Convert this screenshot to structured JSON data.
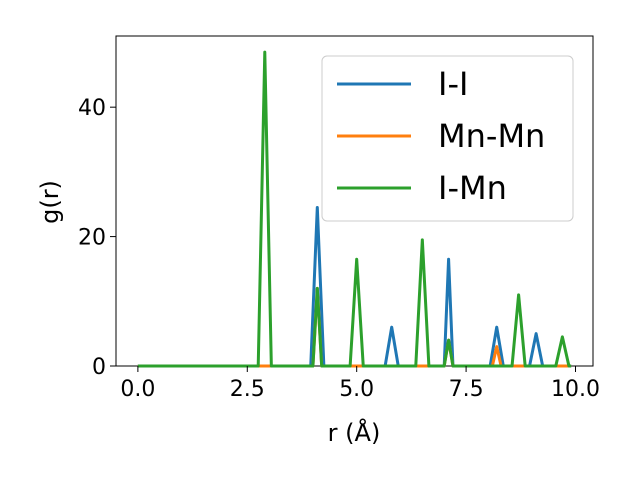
{
  "chart_data": {
    "type": "line",
    "xlabel": "r (Å)",
    "ylabel": "g(r)",
    "xlim": [
      -0.5,
      10.4
    ],
    "ylim": [
      0,
      51
    ],
    "xticks": [
      0.0,
      2.5,
      5.0,
      7.5,
      10.0
    ],
    "xtick_labels": [
      "0.0",
      "2.5",
      "5.0",
      "7.5",
      "10.0"
    ],
    "yticks": [
      0,
      20,
      40
    ],
    "ytick_labels": [
      "0",
      "20",
      "40"
    ],
    "grid": false,
    "legend_position": "top-right",
    "series": [
      {
        "name": "I-I",
        "color": "#1f77b4",
        "x": [
          0,
          3.95,
          4.1,
          4.25,
          5.65,
          5.8,
          5.95,
          7.0,
          7.1,
          7.2,
          8.05,
          8.2,
          8.35,
          8.95,
          9.1,
          9.25,
          9.9
        ],
        "y": [
          0,
          0,
          24.5,
          0,
          0,
          6,
          0,
          0,
          16.5,
          0,
          0,
          6,
          0,
          0,
          5,
          0,
          0
        ]
      },
      {
        "name": "Mn-Mn",
        "color": "#ff7f0e",
        "x": [
          0,
          4.0,
          4.1,
          4.2,
          7.0,
          7.1,
          7.2,
          8.1,
          8.2,
          8.3,
          9.9
        ],
        "y": [
          0,
          0,
          12,
          0,
          0,
          4,
          0,
          0,
          3,
          0,
          0
        ]
      },
      {
        "name": "I-Mn",
        "color": "#2ca02c",
        "x": [
          0,
          2.75,
          2.9,
          3.05,
          4.0,
          4.1,
          4.2,
          4.85,
          5.0,
          5.15,
          6.35,
          6.5,
          6.65,
          7.0,
          7.1,
          7.2,
          8.55,
          8.7,
          8.85,
          9.55,
          9.7,
          9.85,
          9.9
        ],
        "y": [
          0,
          0,
          48.5,
          0,
          0,
          12,
          0,
          0,
          16.5,
          0,
          0,
          19.5,
          0,
          0,
          4,
          0,
          0,
          11,
          0,
          0,
          4.5,
          0,
          0
        ]
      }
    ]
  }
}
